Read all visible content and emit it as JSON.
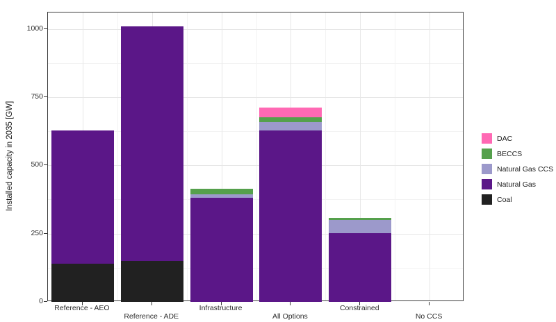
{
  "figure": {
    "background_color": "#ffffff",
    "panel_border_color": "#3c3c3c",
    "grid_major_color": "#e7e7e7",
    "grid_minor_color": "#f3f3f3",
    "text_color": "#1a1a1a"
  },
  "y_axis": {
    "title": "Installed capacity in 2035 [GW]",
    "tick_labels": [
      "0",
      "250",
      "500",
      "750",
      "1000"
    ],
    "tick_values": [
      0,
      250,
      500,
      750,
      1000
    ],
    "minor_tick_values": [
      125,
      375,
      625,
      875
    ]
  },
  "x_axis": {
    "label_rows": [
      0,
      1,
      0,
      1,
      0,
      1
    ]
  },
  "legend": {
    "order": [
      "DAC",
      "BECCS",
      "Natural Gas CCS",
      "Natural Gas",
      "Coal"
    ]
  },
  "chart_data": {
    "type": "bar",
    "stacked": true,
    "title": "",
    "xlabel": "",
    "ylabel": "Installed capacity in 2035 [GW]",
    "ylim": [
      0,
      1060
    ],
    "grid": true,
    "legend_position": "right",
    "bar_width_fraction": 0.9,
    "categories": [
      "Reference - AEO",
      "Reference - ADE",
      "Infrastructure",
      "All Options",
      "Constrained",
      "No CCS"
    ],
    "series": [
      {
        "name": "Coal",
        "color": "#212121",
        "values": [
          140,
          150,
          0,
          0,
          0,
          0
        ]
      },
      {
        "name": "Natural Gas",
        "color": "#5b1788",
        "values": [
          489,
          860,
          381,
          629,
          252,
          0
        ]
      },
      {
        "name": "Natural Gas CCS",
        "color": "#9c99cb",
        "values": [
          0,
          0,
          14,
          30,
          47,
          0
        ]
      },
      {
        "name": "BECCS",
        "color": "#55a04c",
        "values": [
          0,
          0,
          20,
          16,
          9,
          0
        ]
      },
      {
        "name": "DAC",
        "color": "#ff69b4",
        "values": [
          0,
          0,
          0,
          36,
          0,
          0
        ]
      }
    ],
    "category_totals": [
      629,
      1010,
      415,
      711,
      308,
      0
    ]
  }
}
